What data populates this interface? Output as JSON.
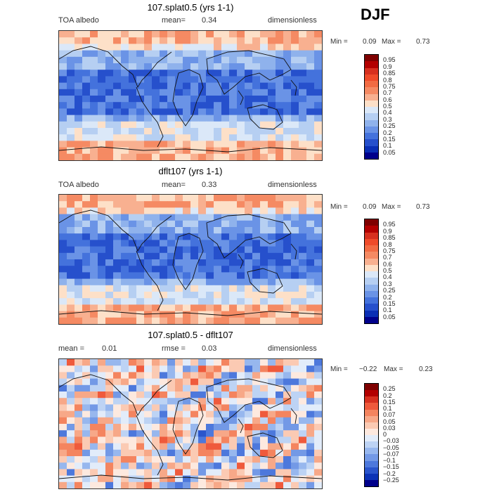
{
  "season": "DJF",
  "panels": [
    {
      "title": "107.splat0.5 (yrs 1-1)",
      "left": "TOA albedo",
      "mid": "mean=",
      "mid_value": "0.34",
      "right": "dimensionless",
      "min_label": "Min =",
      "min_value": "0.09",
      "max_label": "Max =",
      "max_value": "0.73",
      "levels": [
        "0.95",
        "0.9",
        "0.85",
        "0.8",
        "0.75",
        "0.7",
        "0.6",
        "0.5",
        "0.4",
        "0.3",
        "0.25",
        "0.2",
        "0.15",
        "0.1",
        "0.05"
      ]
    },
    {
      "title": "dflt107 (yrs 1-1)",
      "left": "TOA albedo",
      "mid": "mean=",
      "mid_value": "0.33",
      "right": "dimensionless",
      "min_label": "Min =",
      "min_value": "0.09",
      "max_label": "Max =",
      "max_value": "0.73",
      "levels": [
        "0.95",
        "0.9",
        "0.85",
        "0.8",
        "0.75",
        "0.7",
        "0.6",
        "0.5",
        "0.4",
        "0.3",
        "0.25",
        "0.2",
        "0.15",
        "0.1",
        "0.05"
      ]
    },
    {
      "title": "107.splat0.5 - dflt107",
      "left": "mean =",
      "left_value": "0.01",
      "mid": "rmse =",
      "mid_value": "0.03",
      "right": "dimensionless",
      "min_label": "Min =",
      "min_value": "−0.22",
      "max_label": "Max =",
      "max_value": "0.23",
      "levels": [
        "0.25",
        "0.2",
        "0.15",
        "0.1",
        "0.07",
        "0.05",
        "0.03",
        "0",
        "−0.03",
        "−0.05",
        "−0.07",
        "−0.1",
        "−0.15",
        "−0.2",
        "−0.25"
      ]
    }
  ],
  "colors": {
    "seq": [
      "#7f0000",
      "#b30000",
      "#d7301f",
      "#ef4b2a",
      "#f26b43",
      "#f58a63",
      "#f8b090",
      "#fde0c8",
      "#dbe8f8",
      "#b6cff2",
      "#8fb2ec",
      "#6a93e6",
      "#4472dc",
      "#2650cc",
      "#0a2fb5",
      "#00008b"
    ],
    "diff": [
      "#7f0000",
      "#b30000",
      "#d7301f",
      "#ef5a3c",
      "#f4845f",
      "#f7a888",
      "#fbcab3",
      "#fde9df",
      "#e2ecfa",
      "#bdd3f4",
      "#97b7ee",
      "#7399e6",
      "#4d78dc",
      "#2a55cc",
      "#0c33b6",
      "#00008b"
    ]
  },
  "chart_data": [
    {
      "type": "heatmap",
      "title": "107.splat0.5 (yrs 1-1)",
      "variable": "TOA albedo",
      "units": "dimensionless",
      "mean": 0.34,
      "min": 0.09,
      "max": 0.73,
      "contour_levels": [
        0.05,
        0.1,
        0.15,
        0.2,
        0.25,
        0.3,
        0.4,
        0.5,
        0.6,
        0.7,
        0.75,
        0.8,
        0.85,
        0.9,
        0.95
      ]
    },
    {
      "type": "heatmap",
      "title": "dflt107 (yrs 1-1)",
      "variable": "TOA albedo",
      "units": "dimensionless",
      "mean": 0.33,
      "min": 0.09,
      "max": 0.73,
      "contour_levels": [
        0.05,
        0.1,
        0.15,
        0.2,
        0.25,
        0.3,
        0.4,
        0.5,
        0.6,
        0.7,
        0.75,
        0.8,
        0.85,
        0.9,
        0.95
      ]
    },
    {
      "type": "heatmap",
      "title": "107.splat0.5 - dflt107",
      "units": "dimensionless",
      "mean": 0.01,
      "rmse": 0.03,
      "min": -0.22,
      "max": 0.23,
      "contour_levels": [
        -0.25,
        -0.2,
        -0.15,
        -0.1,
        -0.07,
        -0.05,
        -0.03,
        0,
        0.03,
        0.05,
        0.07,
        0.1,
        0.15,
        0.2,
        0.25
      ]
    }
  ]
}
